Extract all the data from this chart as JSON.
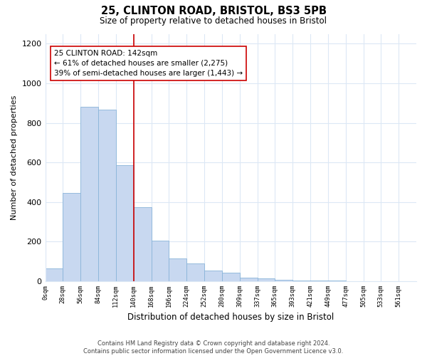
{
  "title": "25, CLINTON ROAD, BRISTOL, BS3 5PB",
  "subtitle": "Size of property relative to detached houses in Bristol",
  "xlabel": "Distribution of detached houses by size in Bristol",
  "ylabel": "Number of detached properties",
  "bin_labels": [
    "0sqm",
    "28sqm",
    "56sqm",
    "84sqm",
    "112sqm",
    "140sqm",
    "168sqm",
    "196sqm",
    "224sqm",
    "252sqm",
    "280sqm",
    "309sqm",
    "337sqm",
    "365sqm",
    "393sqm",
    "421sqm",
    "449sqm",
    "477sqm",
    "505sqm",
    "533sqm",
    "561sqm"
  ],
  "bar_heights": [
    65,
    445,
    880,
    865,
    585,
    375,
    205,
    115,
    88,
    55,
    42,
    18,
    15,
    5,
    3,
    2,
    2,
    1,
    1,
    1
  ],
  "bar_color": "#c8d8f0",
  "bar_edge_color": "#89b4d9",
  "vline_x": 5,
  "vline_color": "#cc0000",
  "annotation_text": "25 CLINTON ROAD: 142sqm\n← 61% of detached houses are smaller (2,275)\n39% of semi-detached houses are larger (1,443) →",
  "annotation_box_color": "#ffffff",
  "annotation_box_edge": "#cc0000",
  "ylim": [
    0,
    1250
  ],
  "yticks": [
    0,
    200,
    400,
    600,
    800,
    1000,
    1200
  ],
  "footer_line1": "Contains HM Land Registry data © Crown copyright and database right 2024.",
  "footer_line2": "Contains public sector information licensed under the Open Government Licence v3.0.",
  "bg_color": "#ffffff",
  "grid_color": "#dce8f5"
}
